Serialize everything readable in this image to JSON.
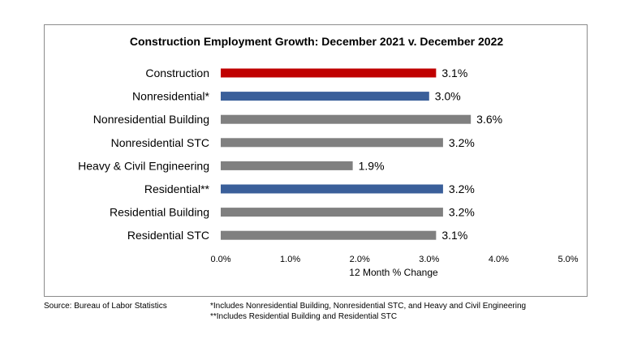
{
  "chart_data": {
    "type": "bar",
    "orientation": "horizontal",
    "title": "Construction Employment Growth: December 2021 v. December 2022",
    "xlabel": "12 Month % Change",
    "ylabel": "",
    "xlim": [
      0,
      5
    ],
    "x_ticks": [
      "0.0%",
      "1.0%",
      "2.0%",
      "3.0%",
      "4.0%",
      "5.0%"
    ],
    "grid": false,
    "legend": "none",
    "categories": [
      "Construction",
      "Nonresidential*",
      "Nonresidential Building",
      "Nonresidential STC",
      "Heavy & Civil Engineering",
      "Residential**",
      "Residential Building",
      "Residential STC"
    ],
    "values": [
      3.1,
      3.0,
      3.6,
      3.2,
      1.9,
      3.2,
      3.2,
      3.1
    ],
    "value_labels": [
      "3.1%",
      "3.0%",
      "3.6%",
      "3.2%",
      "1.9%",
      "3.2%",
      "3.2%",
      "3.1%"
    ],
    "bar_colors": [
      "#c00000",
      "#3a5f9a",
      "#808080",
      "#808080",
      "#808080",
      "#3a5f9a",
      "#808080",
      "#808080"
    ]
  },
  "footer": {
    "source": "Source:  Bureau of Labor Statistics",
    "note1": "*Includes Nonresidential Building, Nonresidential STC, and Heavy and Civil Engineering",
    "note2": "**Includes Residential Building and Residential STC"
  }
}
